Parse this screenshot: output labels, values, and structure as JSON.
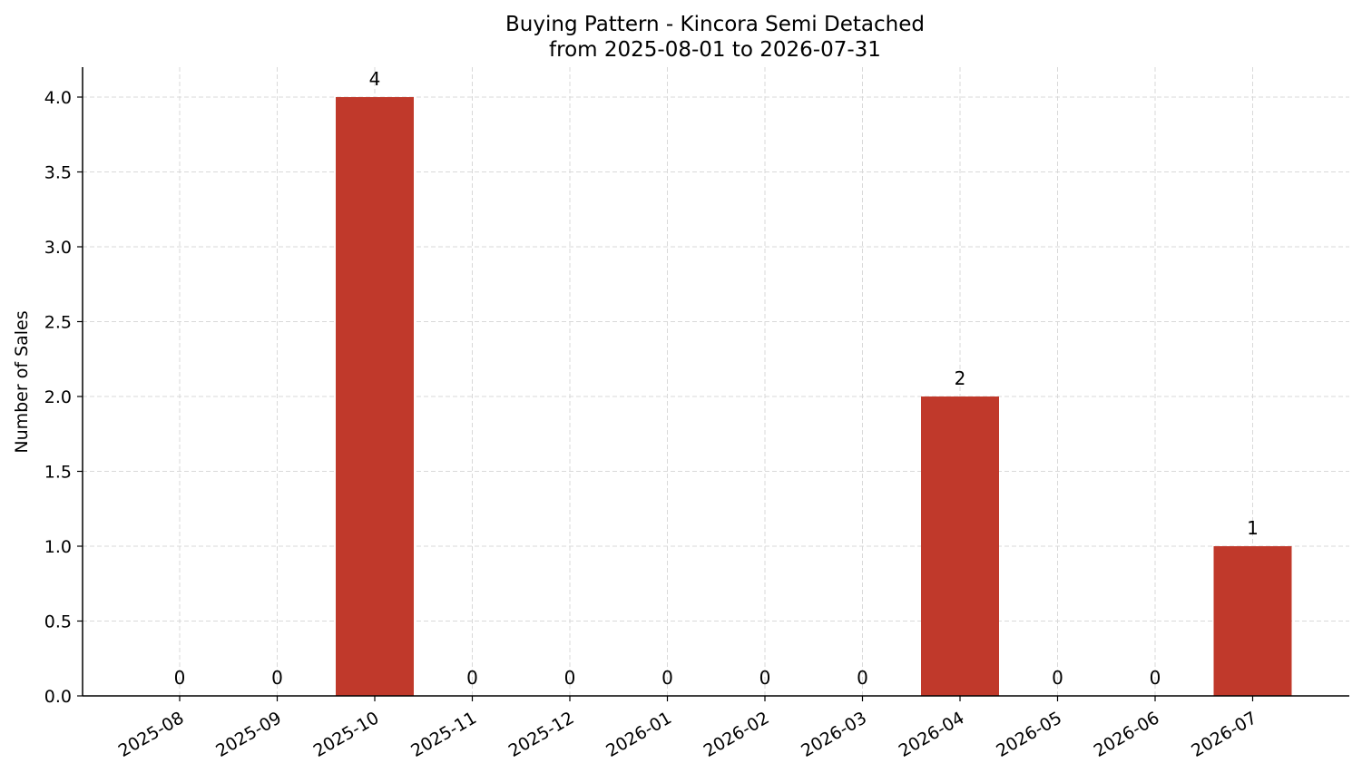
{
  "chart_data": {
    "type": "bar",
    "title": "Buying Pattern - Kincora Semi Detached",
    "subtitle": "from 2025-08-01 to 2026-07-31",
    "xlabel": "",
    "ylabel": "Number of Sales",
    "categories": [
      "2025-08",
      "2025-09",
      "2025-10",
      "2025-11",
      "2025-12",
      "2026-01",
      "2026-02",
      "2026-03",
      "2026-04",
      "2026-05",
      "2026-06",
      "2026-07"
    ],
    "values": [
      0,
      0,
      4,
      0,
      0,
      0,
      0,
      0,
      2,
      0,
      0,
      1
    ],
    "data_labels": [
      "0",
      "0",
      "4",
      "0",
      "0",
      "0",
      "0",
      "0",
      "2",
      "0",
      "0",
      "1"
    ],
    "yticks": [
      "0.0",
      "0.5",
      "1.0",
      "1.5",
      "2.0",
      "2.5",
      "3.0",
      "3.5",
      "4.0"
    ],
    "ylim": [
      0,
      4.2
    ],
    "grid": true,
    "bar_color": "#c0392b"
  }
}
